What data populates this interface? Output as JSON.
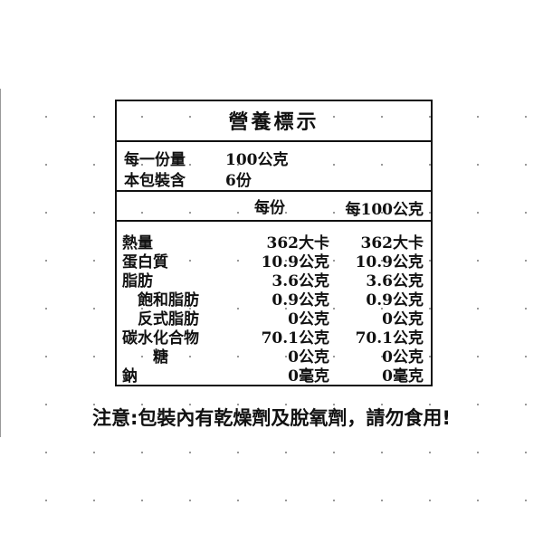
{
  "label": {
    "title": "營養標示",
    "serving_size_label": "每一份量",
    "serving_size": "100公克",
    "servings_label": "本包裝含",
    "servings": "6份",
    "columns": [
      "每份",
      "每100公克"
    ],
    "rows": [
      [
        "熱量",
        "362大卡",
        "362大卡"
      ],
      [
        "蛋白質",
        "10.9公克",
        "10.9公克"
      ],
      [
        "脂肪",
        "3.6公克",
        "3.6公克"
      ],
      [
        "飽和脂肪",
        "0.9公克",
        "0.9公克"
      ],
      [
        "反式脂肪",
        "0公克",
        "0公克"
      ],
      [
        "碳水化合物",
        "70.1公克",
        "70.1公克"
      ],
      [
        "糖",
        "0公克",
        "0公克"
      ],
      [
        "鈉",
        "0毫克",
        "0毫克"
      ]
    ]
  },
  "notice": "注意:包裝內有乾燥劑及脫氧劑，請勿食用!"
}
